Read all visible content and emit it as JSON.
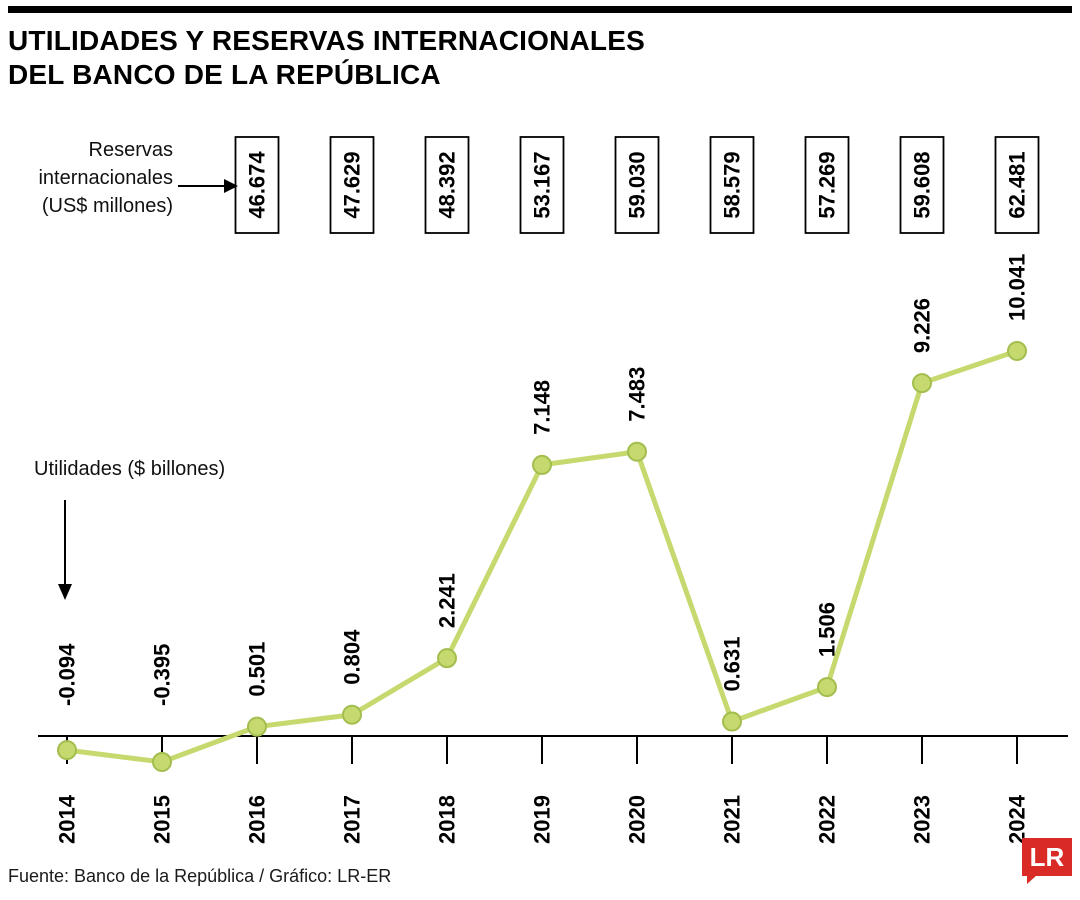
{
  "title": {
    "line1": "UTILIDADES Y RESERVAS INTERNACIONALES",
    "line2": "DEL BANCO DE LA REPÚBLICA"
  },
  "annotations": {
    "reservas": {
      "line1": "Reservas",
      "line2": "internacionales",
      "line3": "(US$ millones)"
    },
    "utilidades": "Utilidades ($ billones)"
  },
  "footer": {
    "source": "Fuente: Banco de la República / Gráfico: LR-ER"
  },
  "logo": {
    "text": "LR",
    "color": "#d92a25"
  },
  "chart_data": {
    "type": "line",
    "title": "UTILIDADES Y RESERVAS INTERNACIONALES DEL BANCO DE LA REPÚBLICA",
    "categories": [
      "2014",
      "2015",
      "2016",
      "2017",
      "2018",
      "2019",
      "2020",
      "2021",
      "2022",
      "2023",
      "2024"
    ],
    "series": [
      {
        "name": "Utilidades ($ billones)",
        "type": "line",
        "color": "#c5d96f",
        "marker_stroke": "#a3bd4e",
        "values": [
          -0.094,
          -0.395,
          0.501,
          0.804,
          2.241,
          7.148,
          7.483,
          0.631,
          1.506,
          9.226,
          10.041
        ],
        "labels": [
          "-0.094",
          "-0.395",
          "0.501",
          "0.804",
          "2.241",
          "7.148",
          "7.483",
          "0.631",
          "1.506",
          "9.226",
          "10.041"
        ]
      },
      {
        "name": "Reservas internacionales (US$ millones)",
        "type": "boxed-labels",
        "values": [
          null,
          null,
          46674,
          47629,
          48392,
          53167,
          59030,
          58579,
          57269,
          59608,
          62481
        ],
        "labels": [
          null,
          null,
          "46.674",
          "47.629",
          "48.392",
          "53.167",
          "59.030",
          "58.579",
          "57.269",
          "59.608",
          "62.481"
        ]
      }
    ],
    "xlabel": "",
    "ylabel": "Utilidades ($ billones)",
    "ylim": [
      -1,
      11
    ],
    "grid": false,
    "legend_position": "inline-annotations",
    "x_labels_rotated": true,
    "value_labels_rotated": true
  }
}
